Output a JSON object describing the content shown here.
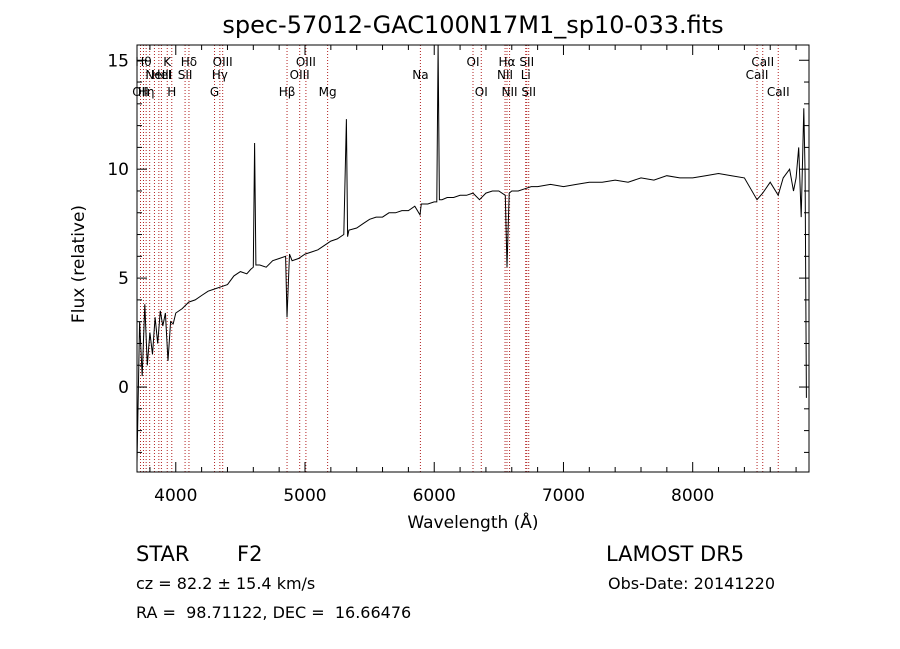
{
  "chart_data": {
    "type": "line",
    "title": "spec-57012-GAC100N17M1_sp10-033.fits",
    "xlabel": "Wavelength (Å)",
    "ylabel": "Flux (relative)",
    "xlim": [
      3700,
      8900
    ],
    "ylim": [
      -3.9,
      15.7
    ],
    "xticks": [
      4000,
      5000,
      6000,
      7000,
      8000
    ],
    "yticks": [
      0,
      5,
      10,
      15
    ],
    "grid": false,
    "series": [
      {
        "x": [
          3700,
          3720,
          3740,
          3760,
          3780,
          3800,
          3820,
          3840,
          3860,
          3880,
          3900,
          3920,
          3940,
          3960,
          3980,
          4000,
          4050,
          4100,
          4150,
          4200,
          4250,
          4300,
          4350,
          4400,
          4450,
          4500,
          4550,
          4580,
          4600,
          4610,
          4620,
          4650,
          4700,
          4750,
          4800,
          4850,
          4861,
          4880,
          4900,
          4950,
          5000,
          5050,
          5100,
          5150,
          5200,
          5250,
          5300,
          5320,
          5330,
          5340,
          5400,
          5450,
          5500,
          5550,
          5600,
          5650,
          5700,
          5750,
          5800,
          5850,
          5890,
          5900,
          5950,
          6000,
          6020,
          6030,
          6040,
          6060,
          6100,
          6150,
          6200,
          6250,
          6300,
          6350,
          6400,
          6450,
          6500,
          6550,
          6563,
          6580,
          6600,
          6650,
          6700,
          6750,
          6800,
          6900,
          7000,
          7100,
          7200,
          7300,
          7400,
          7500,
          7600,
          7700,
          7800,
          7900,
          8000,
          8100,
          8200,
          8300,
          8400,
          8498,
          8542,
          8600,
          8662,
          8700,
          8750,
          8780,
          8800,
          8820,
          8840,
          8860,
          8870,
          8880
        ],
        "y": [
          -3.5,
          3.0,
          0.5,
          3.8,
          1.0,
          2.5,
          1.5,
          3.2,
          2.0,
          3.5,
          2.8,
          3.4,
          1.2,
          3.0,
          2.9,
          3.4,
          3.6,
          3.9,
          4.0,
          4.2,
          4.4,
          4.5,
          4.6,
          4.7,
          5.1,
          5.3,
          5.2,
          5.4,
          5.5,
          11.2,
          5.6,
          5.6,
          5.5,
          5.8,
          5.9,
          6.0,
          3.2,
          6.1,
          5.8,
          5.9,
          6.1,
          6.2,
          6.3,
          6.5,
          6.7,
          6.8,
          7.0,
          12.3,
          6.9,
          7.2,
          7.3,
          7.5,
          7.7,
          7.8,
          7.8,
          8.0,
          8.0,
          8.1,
          8.1,
          8.3,
          7.9,
          8.4,
          8.4,
          8.5,
          8.5,
          15.7,
          8.6,
          8.6,
          8.7,
          8.7,
          8.8,
          8.8,
          8.9,
          8.6,
          8.9,
          9.0,
          9.0,
          8.8,
          5.5,
          8.9,
          9.0,
          9.0,
          9.1,
          9.2,
          9.2,
          9.3,
          9.2,
          9.3,
          9.4,
          9.4,
          9.5,
          9.4,
          9.6,
          9.5,
          9.7,
          9.6,
          9.6,
          9.7,
          9.8,
          9.7,
          9.6,
          8.6,
          8.9,
          9.4,
          8.8,
          9.6,
          10.0,
          9.0,
          9.6,
          11.0,
          7.8,
          12.8,
          9.8,
          -0.5
        ]
      }
    ],
    "line_markers": [
      {
        "wl": 3727,
        "label": "OII",
        "row": 3
      },
      {
        "wl": 3750,
        "label": "Hθ",
        "row": 1
      },
      {
        "wl": 3771,
        "label": "Hη",
        "row": 3
      },
      {
        "wl": 3798,
        "label": "",
        "row": 0
      },
      {
        "wl": 3835,
        "label": "",
        "row": 0
      },
      {
        "wl": 3869,
        "label": "NeIII",
        "row": 2
      },
      {
        "wl": 3889,
        "label": "HeI",
        "row": 2
      },
      {
        "wl": 3934,
        "label": "K",
        "row": 1
      },
      {
        "wl": 3969,
        "label": "H",
        "row": 3
      },
      {
        "wl": 4072,
        "label": "SII",
        "row": 2
      },
      {
        "wl": 4102,
        "label": "Hδ",
        "row": 1
      },
      {
        "wl": 4300,
        "label": "G",
        "row": 3
      },
      {
        "wl": 4341,
        "label": "Hγ",
        "row": 2
      },
      {
        "wl": 4363,
        "label": "OIII",
        "row": 1
      },
      {
        "wl": 4861,
        "label": "Hβ",
        "row": 3
      },
      {
        "wl": 4959,
        "label": "OIII",
        "row": 2
      },
      {
        "wl": 5007,
        "label": "OIII",
        "row": 1
      },
      {
        "wl": 5175,
        "label": "Mg",
        "row": 3
      },
      {
        "wl": 5893,
        "label": "Na",
        "row": 2
      },
      {
        "wl": 6300,
        "label": "OI",
        "row": 1
      },
      {
        "wl": 6364,
        "label": "OI",
        "row": 3
      },
      {
        "wl": 6548,
        "label": "NII",
        "row": 2
      },
      {
        "wl": 6563,
        "label": "Hα",
        "row": 1
      },
      {
        "wl": 6583,
        "label": "NII",
        "row": 3
      },
      {
        "wl": 6708,
        "label": "Li",
        "row": 2
      },
      {
        "wl": 6716,
        "label": "SII",
        "row": 1
      },
      {
        "wl": 6731,
        "label": "SII",
        "row": 3
      },
      {
        "wl": 8498,
        "label": "CaII",
        "row": 2
      },
      {
        "wl": 8542,
        "label": "CaII",
        "row": 1
      },
      {
        "wl": 8662,
        "label": "CaII",
        "row": 3
      }
    ]
  },
  "info": {
    "class": "STAR",
    "subclass": "F2",
    "survey": "LAMOST DR5",
    "cz": "cz = 82.2 ± 15.4 km/s",
    "obs_date": "Obs-Date: 20141220",
    "coords": "RA =  98.71122, DEC =  16.66476"
  }
}
